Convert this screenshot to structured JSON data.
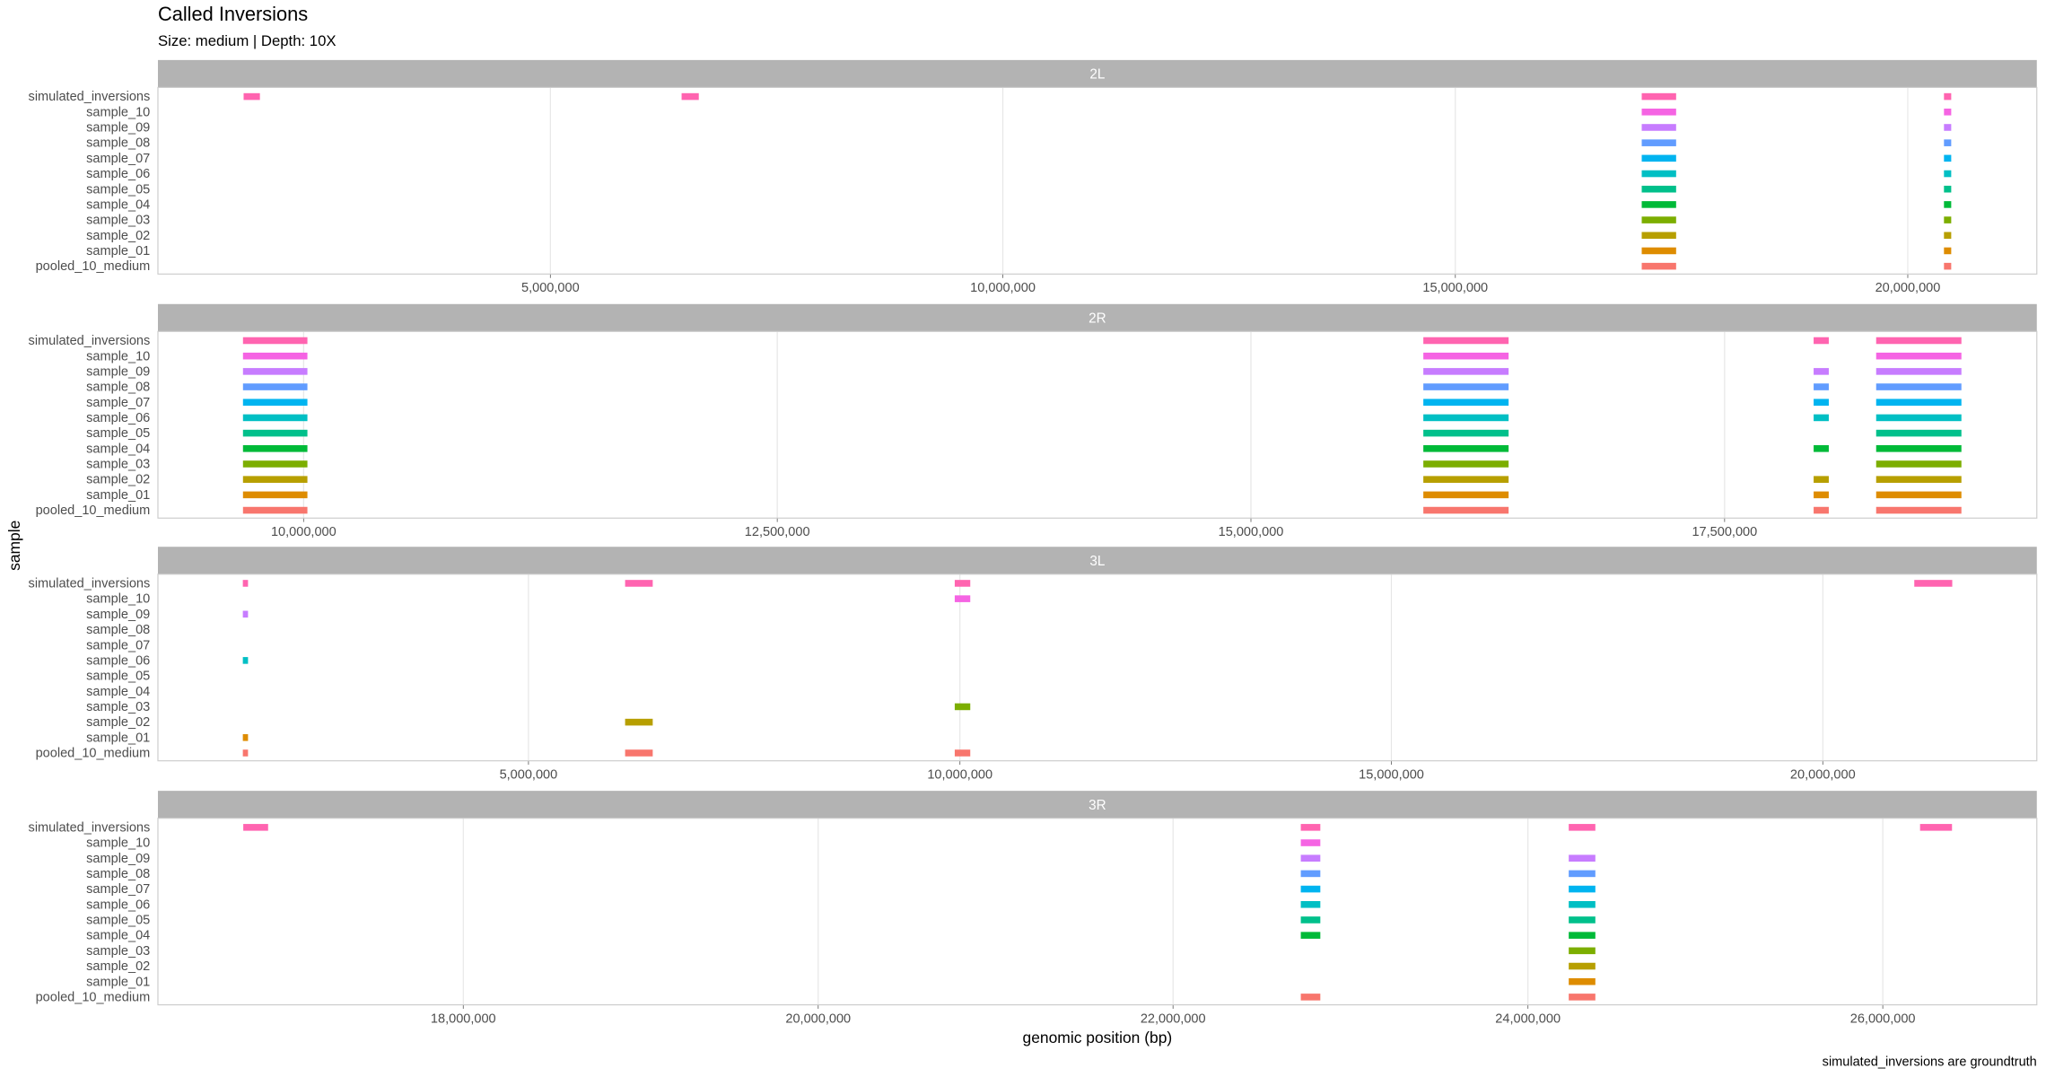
{
  "chart_data": {
    "type": "range",
    "title": "Called Inversions",
    "subtitle": "Size: medium | Depth: 10X",
    "x_label": "genomic position (bp)",
    "y_label": "sample",
    "caption": "simulated_inversions are groundtruth",
    "grid": true,
    "categories": [
      "simulated_inversions",
      "sample_10",
      "sample_09",
      "sample_08",
      "sample_07",
      "sample_06",
      "sample_05",
      "sample_04",
      "sample_03",
      "sample_02",
      "sample_01",
      "pooled_10_medium"
    ],
    "colors": [
      "#FF64B0",
      "#F564E3",
      "#C77CFF",
      "#619CFF",
      "#00B4F0",
      "#00BFC4",
      "#00C08B",
      "#00BA38",
      "#7CAE00",
      "#B79F00",
      "#DE8C00",
      "#F8766D"
    ],
    "panels": [
      {
        "label": "2L",
        "xlim": [
          663000,
          21426000
        ],
        "xticks": [
          {
            "value": 5000000,
            "label": "5,000,000"
          },
          {
            "value": 10000000,
            "label": "10,000,000"
          },
          {
            "value": 15000000,
            "label": "15,000,000"
          },
          {
            "value": 20000000,
            "label": "20,000,000"
          }
        ],
        "ranges": [
          [
            [
              1610000,
              1790000
            ],
            [
              6450000,
              6640000
            ],
            [
              17060000,
              17440000
            ],
            [
              20400000,
              20480000
            ]
          ],
          [
            [
              17060000,
              17440000
            ],
            [
              20400000,
              20480000
            ]
          ],
          [
            [
              17060000,
              17440000
            ],
            [
              20400000,
              20480000
            ]
          ],
          [
            [
              17060000,
              17440000
            ],
            [
              20400000,
              20480000
            ]
          ],
          [
            [
              17060000,
              17440000
            ],
            [
              20400000,
              20480000
            ]
          ],
          [
            [
              17060000,
              17440000
            ],
            [
              20400000,
              20480000
            ]
          ],
          [
            [
              17060000,
              17440000
            ],
            [
              20400000,
              20480000
            ]
          ],
          [
            [
              17060000,
              17440000
            ],
            [
              20400000,
              20480000
            ]
          ],
          [
            [
              17060000,
              17440000
            ],
            [
              20400000,
              20480000
            ]
          ],
          [
            [
              17060000,
              17440000
            ],
            [
              20400000,
              20480000
            ]
          ],
          [
            [
              17060000,
              17440000
            ],
            [
              20400000,
              20480000
            ]
          ],
          [
            [
              17060000,
              17440000
            ],
            [
              20400000,
              20480000
            ]
          ]
        ]
      },
      {
        "label": "2R",
        "xlim": [
          9231000,
          19148000
        ],
        "xticks": [
          {
            "value": 10000000,
            "label": "10,000,000"
          },
          {
            "value": 12500000,
            "label": "12,500,000"
          },
          {
            "value": 15000000,
            "label": "15,000,000"
          },
          {
            "value": 17500000,
            "label": "17,500,000"
          }
        ],
        "ranges": [
          [
            [
              9680000,
              10020000
            ],
            [
              15910000,
              16360000
            ],
            [
              17970000,
              18050000
            ],
            [
              18300000,
              18750000
            ]
          ],
          [
            [
              9680000,
              10020000
            ],
            [
              15910000,
              16360000
            ],
            [
              18300000,
              18750000
            ]
          ],
          [
            [
              9680000,
              10020000
            ],
            [
              15910000,
              16360000
            ],
            [
              17970000,
              18050000
            ],
            [
              18300000,
              18750000
            ]
          ],
          [
            [
              9680000,
              10020000
            ],
            [
              15910000,
              16360000
            ],
            [
              17970000,
              18050000
            ],
            [
              18300000,
              18750000
            ]
          ],
          [
            [
              9680000,
              10020000
            ],
            [
              15910000,
              16360000
            ],
            [
              17970000,
              18050000
            ],
            [
              18300000,
              18750000
            ]
          ],
          [
            [
              9680000,
              10020000
            ],
            [
              15910000,
              16360000
            ],
            [
              17970000,
              18050000
            ],
            [
              18300000,
              18750000
            ]
          ],
          [
            [
              9680000,
              10020000
            ],
            [
              15910000,
              16360000
            ],
            [
              18300000,
              18750000
            ]
          ],
          [
            [
              9680000,
              10020000
            ],
            [
              15910000,
              16360000
            ],
            [
              17970000,
              18050000
            ],
            [
              18300000,
              18750000
            ]
          ],
          [
            [
              9680000,
              10020000
            ],
            [
              15910000,
              16360000
            ],
            [
              18300000,
              18750000
            ]
          ],
          [
            [
              9680000,
              10020000
            ],
            [
              15910000,
              16360000
            ],
            [
              17970000,
              18050000
            ],
            [
              18300000,
              18750000
            ]
          ],
          [
            [
              9680000,
              10020000
            ],
            [
              15910000,
              16360000
            ],
            [
              17970000,
              18050000
            ],
            [
              18300000,
              18750000
            ]
          ],
          [
            [
              9680000,
              10020000
            ],
            [
              15910000,
              16360000
            ],
            [
              17970000,
              18050000
            ],
            [
              18300000,
              18750000
            ]
          ]
        ]
      },
      {
        "label": "3L",
        "xlim": [
          705900,
          22480000
        ],
        "xticks": [
          {
            "value": 5000000,
            "label": "5,000,000"
          },
          {
            "value": 10000000,
            "label": "10,000,000"
          },
          {
            "value": 15000000,
            "label": "15,000,000"
          },
          {
            "value": 20000000,
            "label": "20,000,000"
          }
        ],
        "ranges": [
          [
            [
              1690000,
              1750000
            ],
            [
              6120000,
              6440000
            ],
            [
              9940000,
              10120000
            ],
            [
              21060000,
              21500000
            ]
          ],
          [
            [
              9940000,
              10120000
            ]
          ],
          [
            [
              1690000,
              1750000
            ]
          ],
          [],
          [],
          [
            [
              1690000,
              1750000
            ]
          ],
          [],
          [],
          [
            [
              9940000,
              10120000
            ]
          ],
          [
            [
              6120000,
              6440000
            ]
          ],
          [
            [
              1690000,
              1750000
            ]
          ],
          [
            [
              1690000,
              1750000
            ],
            [
              6120000,
              6440000
            ],
            [
              9940000,
              10120000
            ]
          ]
        ]
      },
      {
        "label": "3R",
        "xlim": [
          16279000,
          26868000
        ],
        "xticks": [
          {
            "value": 18000000,
            "label": "18,000,000"
          },
          {
            "value": 20000000,
            "label": "20,000,000"
          },
          {
            "value": 22000000,
            "label": "22,000,000"
          },
          {
            "value": 24000000,
            "label": "24,000,000"
          },
          {
            "value": 26000000,
            "label": "26,000,000"
          }
        ],
        "ranges": [
          [
            [
              16760000,
              16900000
            ],
            [
              22720000,
              22830000
            ],
            [
              24230000,
              24380000
            ],
            [
              26210000,
              26390000
            ]
          ],
          [
            [
              22720000,
              22830000
            ]
          ],
          [
            [
              22720000,
              22830000
            ],
            [
              24230000,
              24380000
            ]
          ],
          [
            [
              22720000,
              22830000
            ],
            [
              24230000,
              24380000
            ]
          ],
          [
            [
              22720000,
              22830000
            ],
            [
              24230000,
              24380000
            ]
          ],
          [
            [
              22720000,
              22830000
            ],
            [
              24230000,
              24380000
            ]
          ],
          [
            [
              22720000,
              22830000
            ],
            [
              24230000,
              24380000
            ]
          ],
          [
            [
              22720000,
              22830000
            ],
            [
              24230000,
              24380000
            ]
          ],
          [
            [
              24230000,
              24380000
            ]
          ],
          [
            [
              24230000,
              24380000
            ]
          ],
          [
            [
              24230000,
              24380000
            ]
          ],
          [
            [
              22720000,
              22830000
            ],
            [
              24230000,
              24380000
            ]
          ]
        ]
      }
    ]
  }
}
